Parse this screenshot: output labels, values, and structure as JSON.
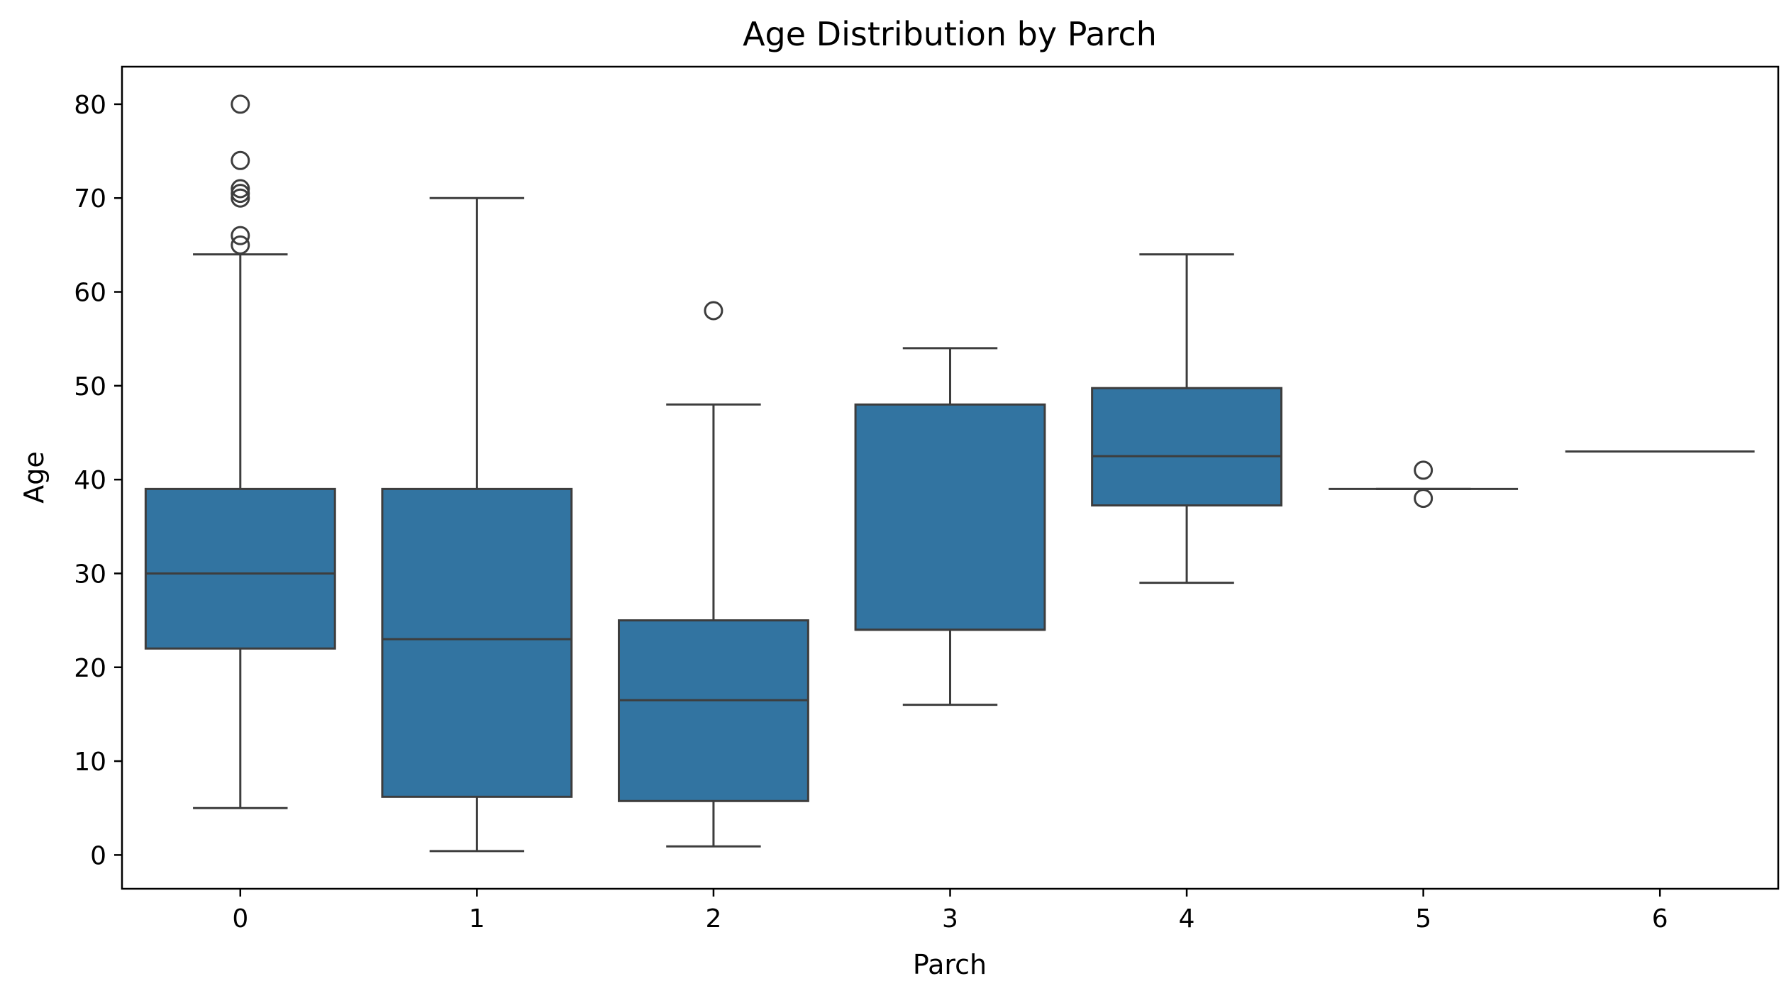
{
  "chart_data": {
    "type": "box",
    "title": "Age Distribution by Parch",
    "xlabel": "Parch",
    "ylabel": "Age",
    "ylim": [
      -3.6,
      84
    ],
    "yticks": [
      0,
      10,
      20,
      30,
      40,
      50,
      60,
      70,
      80
    ],
    "grid": false,
    "legend": "none",
    "box_color": "#3274a1",
    "line_color": "#3d3d3d",
    "categories": [
      "0",
      "1",
      "2",
      "3",
      "4",
      "5",
      "6"
    ],
    "boxes": [
      {
        "category": "0",
        "whisker_low": 5,
        "q1": 22,
        "median": 30,
        "q3": 39,
        "whisker_high": 64,
        "outliers": [
          65,
          66,
          70,
          70.5,
          71,
          74,
          80
        ]
      },
      {
        "category": "1",
        "whisker_low": 0.42,
        "q1": 6.2,
        "median": 23,
        "q3": 39,
        "whisker_high": 70,
        "outliers": []
      },
      {
        "category": "2",
        "whisker_low": 0.92,
        "q1": 5.75,
        "median": 16.5,
        "q3": 25,
        "whisker_high": 48,
        "outliers": [
          58
        ]
      },
      {
        "category": "3",
        "whisker_low": 16,
        "q1": 24,
        "median": 24,
        "q3": 48,
        "whisker_high": 54,
        "outliers": []
      },
      {
        "category": "4",
        "whisker_low": 29,
        "q1": 37.25,
        "median": 42.5,
        "q3": 49.75,
        "whisker_high": 64,
        "outliers": []
      },
      {
        "category": "5",
        "whisker_low": 39,
        "q1": 39,
        "median": 39,
        "q3": 39,
        "whisker_high": 39,
        "outliers": [
          38,
          41
        ]
      },
      {
        "category": "6",
        "whisker_low": 43,
        "q1": 43,
        "median": 43,
        "q3": 43,
        "whisker_high": 43,
        "outliers": []
      }
    ]
  }
}
